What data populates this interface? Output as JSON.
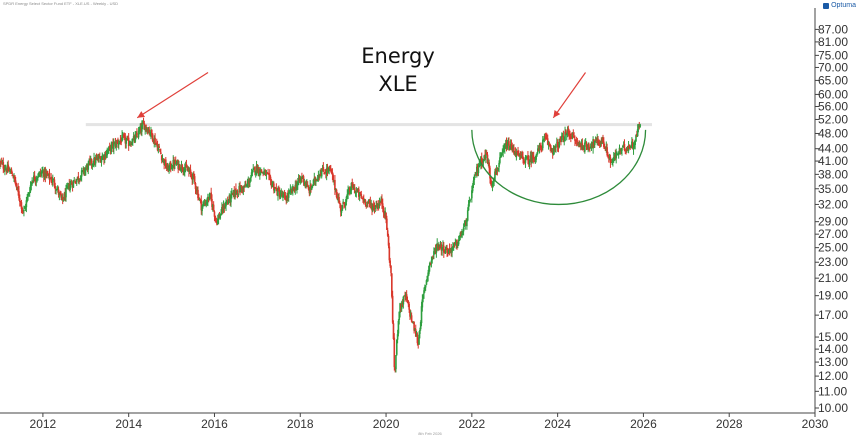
{
  "header": {
    "instrument": "SPDR Energy Select Sector Fund ETF - XLE.US - Weekly - USD",
    "brand": "Optuma"
  },
  "footer": {
    "date_label": "8th Feb 2026"
  },
  "chart_data": {
    "type": "candlestick",
    "title": "Energy",
    "subtitle": "XLE",
    "y_scale": "log",
    "ylim": [
      10,
      95
    ],
    "xlim": [
      2011.0,
      2030.0
    ],
    "y_ticks": [
      "87.00",
      "81.00",
      "75.00",
      "70.00",
      "65.00",
      "60.00",
      "56.00",
      "52.00",
      "48.00",
      "44.00",
      "41.00",
      "38.00",
      "35.00",
      "32.00",
      "29.00",
      "27.00",
      "25.00",
      "23.00",
      "21.00",
      "19.00",
      "17.00",
      "15.00",
      "14.00",
      "13.00",
      "12.00",
      "11.00",
      "10.00"
    ],
    "x_ticks": [
      "2012",
      "2014",
      "2016",
      "2018",
      "2020",
      "2022",
      "2024",
      "2026",
      "2028",
      "2030"
    ],
    "up_color": "#2e9e3e",
    "down_color": "#d9372b",
    "price_path": [
      [
        2011.0,
        40.5
      ],
      [
        2011.3,
        38.0
      ],
      [
        2011.55,
        30.5
      ],
      [
        2011.75,
        37.0
      ],
      [
        2012.0,
        38.5
      ],
      [
        2012.25,
        36.5
      ],
      [
        2012.45,
        32.5
      ],
      [
        2012.6,
        35.5
      ],
      [
        2012.85,
        37.5
      ],
      [
        2013.1,
        40.5
      ],
      [
        2013.4,
        42.0
      ],
      [
        2013.6,
        44.5
      ],
      [
        2013.85,
        46.5
      ],
      [
        2014.0,
        45.5
      ],
      [
        2014.15,
        46.5
      ],
      [
        2014.35,
        50.5
      ],
      [
        2014.5,
        48.5
      ],
      [
        2014.7,
        44.0
      ],
      [
        2014.9,
        39.0
      ],
      [
        2015.05,
        40.5
      ],
      [
        2015.3,
        39.5
      ],
      [
        2015.5,
        37.5
      ],
      [
        2015.7,
        31.5
      ],
      [
        2015.9,
        33.5
      ],
      [
        2016.05,
        29.0
      ],
      [
        2016.25,
        32.0
      ],
      [
        2016.5,
        34.5
      ],
      [
        2016.75,
        35.5
      ],
      [
        2016.95,
        39.5
      ],
      [
        2017.2,
        38.0
      ],
      [
        2017.45,
        34.5
      ],
      [
        2017.65,
        33.0
      ],
      [
        2017.85,
        35.0
      ],
      [
        2018.05,
        37.5
      ],
      [
        2018.2,
        34.5
      ],
      [
        2018.45,
        38.5
      ],
      [
        2018.7,
        39.0
      ],
      [
        2018.95,
        31.0
      ],
      [
        2019.2,
        35.5
      ],
      [
        2019.45,
        33.0
      ],
      [
        2019.7,
        31.5
      ],
      [
        2019.9,
        32.5
      ],
      [
        2020.0,
        29.5
      ],
      [
        2020.12,
        21.0
      ],
      [
        2020.2,
        12.0
      ],
      [
        2020.3,
        17.5
      ],
      [
        2020.45,
        19.0
      ],
      [
        2020.6,
        16.5
      ],
      [
        2020.75,
        14.5
      ],
      [
        2020.85,
        18.5
      ],
      [
        2021.0,
        22.5
      ],
      [
        2021.2,
        25.5
      ],
      [
        2021.45,
        24.5
      ],
      [
        2021.65,
        25.5
      ],
      [
        2021.85,
        28.5
      ],
      [
        2022.0,
        34.5
      ],
      [
        2022.1,
        38.5
      ],
      [
        2022.2,
        41.0
      ],
      [
        2022.35,
        42.5
      ],
      [
        2022.45,
        36.0
      ],
      [
        2022.6,
        39.5
      ],
      [
        2022.8,
        45.0
      ],
      [
        2022.95,
        44.0
      ],
      [
        2023.1,
        42.0
      ],
      [
        2023.3,
        41.0
      ],
      [
        2023.5,
        42.5
      ],
      [
        2023.7,
        46.5
      ],
      [
        2023.9,
        43.5
      ],
      [
        2024.0,
        45.0
      ],
      [
        2024.25,
        48.5
      ],
      [
        2024.45,
        45.5
      ],
      [
        2024.65,
        44.5
      ],
      [
        2024.85,
        45.5
      ],
      [
        2025.05,
        46.0
      ],
      [
        2025.25,
        40.5
      ],
      [
        2025.4,
        43.0
      ],
      [
        2025.6,
        44.5
      ],
      [
        2025.75,
        45.0
      ],
      [
        2025.82,
        46.5
      ],
      [
        2025.88,
        49.5
      ],
      [
        2025.93,
        52.0
      ]
    ]
  }
}
